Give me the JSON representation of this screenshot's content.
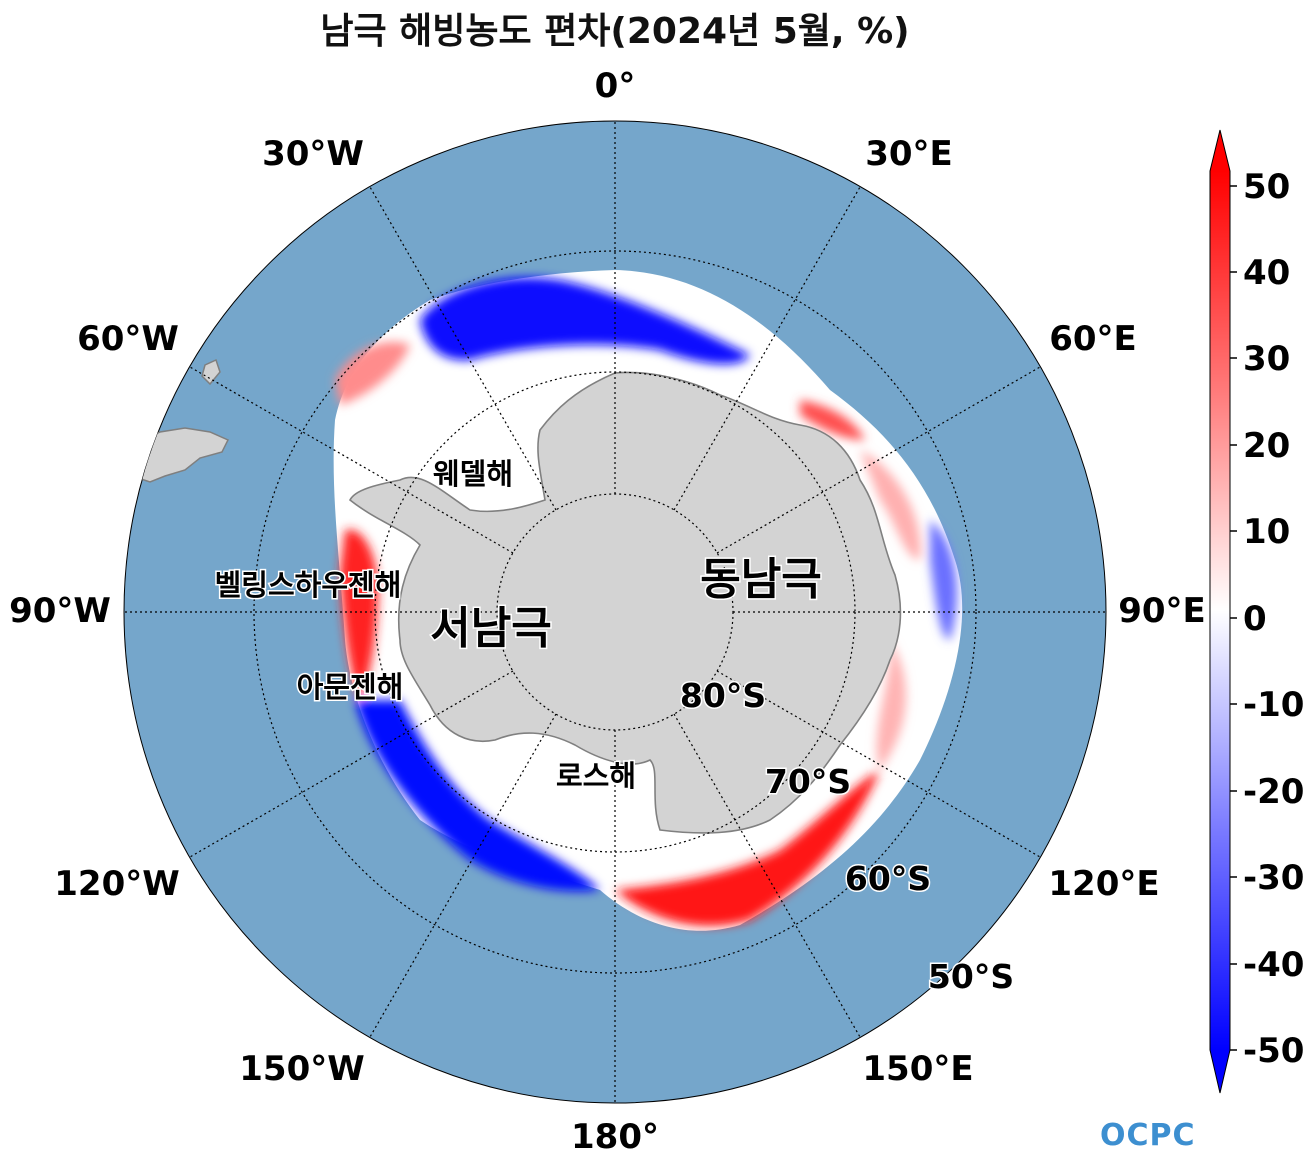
{
  "title": "남극 해빙농도 편차(2024년 5월, %)",
  "map": {
    "projection": "south-polar-stereographic",
    "ocean_color": "#75a6cb",
    "land_color": "#d3d3d3",
    "coast_color": "#7f7f7f",
    "longitude_labels": [
      "0°",
      "30°E",
      "60°E",
      "90°E",
      "120°E",
      "150°E",
      "180°",
      "150°W",
      "120°W",
      "90°W",
      "60°W",
      "30°W"
    ],
    "latitude_labels": [
      "80°S",
      "70°S",
      "60°S",
      "50°S"
    ],
    "region_labels": {
      "weddell": "웨델해",
      "bellingshausen": "벨링스하우젠해",
      "amundsen": "아문젠해",
      "ross": "로스해",
      "west_antarctica": "서남극",
      "east_antarctica": "동남극"
    }
  },
  "colorbar": {
    "ticks": [
      "50",
      "40",
      "30",
      "20",
      "10",
      "0",
      "-10",
      "-20",
      "-30",
      "-40",
      "-50"
    ],
    "min": -50,
    "max": 50,
    "colors": {
      "positive": "#ff0000",
      "zero": "#ffffff",
      "negative": "#0000ff"
    }
  },
  "logo": "OCPC"
}
